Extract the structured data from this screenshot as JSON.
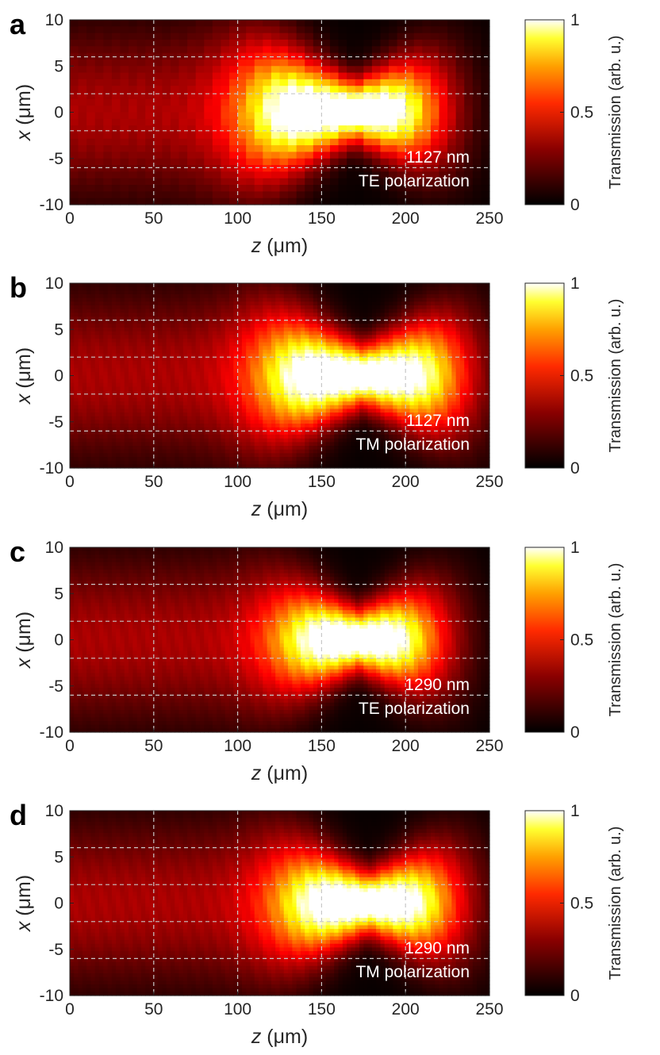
{
  "chart_data": [
    {
      "type": "heatmap",
      "panel_label": "a",
      "wavelength": "1127 nm",
      "polarization": "TE polarization",
      "xlabel_italic": "z",
      "xlabel_unit": " (μm)",
      "ylabel_italic": "x",
      "ylabel_unit": " (μm)",
      "xlim": [
        0,
        250
      ],
      "ylim": [
        -10,
        10
      ],
      "xticks": [
        0,
        50,
        100,
        150,
        200,
        250
      ],
      "yticks": [
        10,
        5,
        0,
        -5,
        -10
      ],
      "dashed_vlines": [
        50,
        100,
        150,
        200
      ],
      "dashed_hlines": [
        6,
        2,
        -2,
        -6
      ],
      "peak": {
        "z": 170,
        "x": 0.5,
        "value": 1.0
      },
      "beam_core_z_range": [
        140,
        185
      ],
      "style": "pixelated",
      "colorbar": {
        "label": "Transmission (arb. u.)",
        "ticks": [
          1,
          0.5,
          0
        ],
        "range": [
          0,
          1
        ]
      }
    },
    {
      "type": "heatmap",
      "panel_label": "b",
      "wavelength": "1127 nm",
      "polarization": "TM polarization",
      "xlabel_italic": "z",
      "xlabel_unit": " (μm)",
      "ylabel_italic": "x",
      "ylabel_unit": " (μm)",
      "xlim": [
        0,
        250
      ],
      "ylim": [
        -10,
        10
      ],
      "xticks": [
        0,
        50,
        100,
        150,
        200,
        250
      ],
      "yticks": [
        10,
        5,
        0,
        -5,
        -10
      ],
      "dashed_vlines": [
        50,
        100,
        150,
        200
      ],
      "dashed_hlines": [
        6,
        2,
        -2,
        -6
      ],
      "peak": {
        "z": 175,
        "x": 0,
        "value": 1.0
      },
      "beam_core_z_range": [
        150,
        200
      ],
      "style": "smooth",
      "colorbar": {
        "label": "Transmission (arb. u.)",
        "ticks": [
          1,
          0.5,
          0
        ],
        "range": [
          0,
          1
        ]
      }
    },
    {
      "type": "heatmap",
      "panel_label": "c",
      "wavelength": "1290 nm",
      "polarization": "TE polarization",
      "xlabel_italic": "z",
      "xlabel_unit": " (μm)",
      "ylabel_italic": "x",
      "ylabel_unit": " (μm)",
      "xlim": [
        0,
        250
      ],
      "ylim": [
        -10,
        10
      ],
      "xticks": [
        0,
        50,
        100,
        150,
        200,
        250
      ],
      "yticks": [
        10,
        5,
        0,
        -5,
        -10
      ],
      "dashed_vlines": [
        50,
        100,
        150,
        200
      ],
      "dashed_hlines": [
        6,
        2,
        -2,
        -6
      ],
      "peak": {
        "z": 172,
        "x": 0,
        "value": 1.0
      },
      "beam_core_z_range": [
        160,
        185
      ],
      "style": "smooth",
      "colorbar": {
        "label": "Transmission (arb. u.)",
        "ticks": [
          1,
          0.5,
          0
        ],
        "range": [
          0,
          1
        ]
      }
    },
    {
      "type": "heatmap",
      "panel_label": "d",
      "wavelength": "1290 nm",
      "polarization": "TM polarization",
      "xlabel_italic": "z",
      "xlabel_unit": " (μm)",
      "ylabel_italic": "x",
      "ylabel_unit": " (μm)",
      "xlim": [
        0,
        250
      ],
      "ylim": [
        -10,
        10
      ],
      "xticks": [
        0,
        50,
        100,
        150,
        200,
        250
      ],
      "yticks": [
        10,
        5,
        0,
        -5,
        -10
      ],
      "dashed_vlines": [
        50,
        100,
        150,
        200
      ],
      "dashed_hlines": [
        6,
        2,
        -2,
        -6
      ],
      "peak": {
        "z": 178,
        "x": 0,
        "value": 1.0
      },
      "beam_core_z_range": [
        160,
        195
      ],
      "style": "smooth",
      "colorbar": {
        "label": "Transmission (arb. u.)",
        "ticks": [
          1,
          0.5,
          0
        ],
        "range": [
          0,
          1
        ]
      }
    }
  ]
}
